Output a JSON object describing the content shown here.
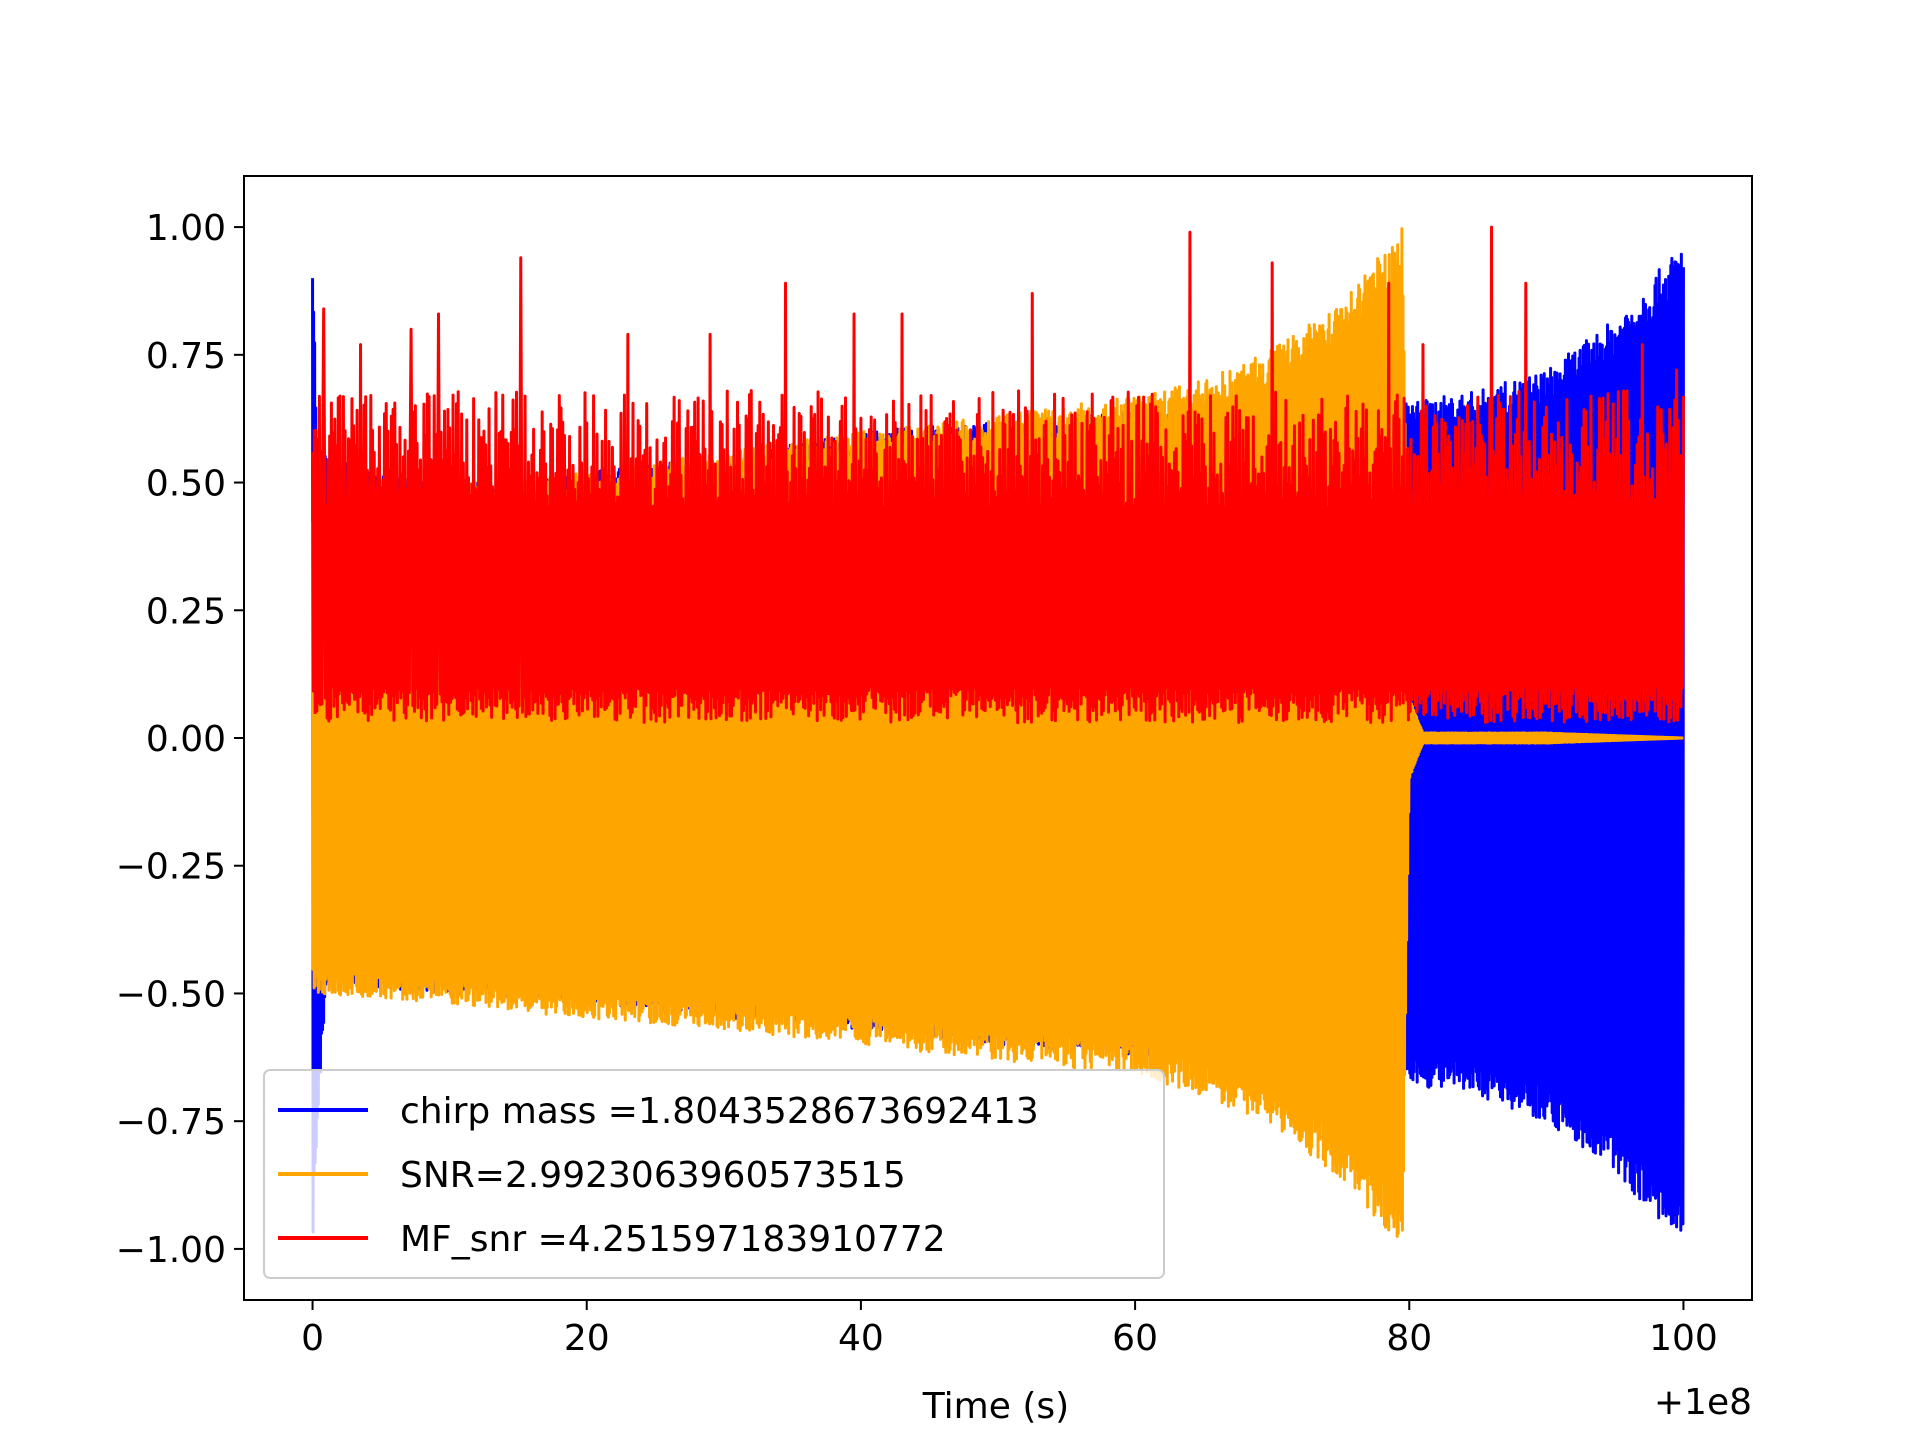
{
  "chart_data": {
    "type": "line",
    "title": "",
    "xlabel": "Time (s)",
    "ylabel": "",
    "x_offset_label": "+1e8",
    "xlim": [
      -5,
      105
    ],
    "ylim": [
      -1.1,
      1.1
    ],
    "x_ticks": [
      0,
      20,
      40,
      60,
      80,
      100
    ],
    "x_tick_labels": [
      "0",
      "20",
      "40",
      "60",
      "80",
      "100"
    ],
    "y_ticks": [
      1.0,
      0.75,
      0.5,
      0.25,
      0.0,
      -0.25,
      -0.5,
      -0.75,
      -1.0
    ],
    "y_tick_labels": [
      "1.00",
      "0.75",
      "0.50",
      "0.25",
      "0.00",
      "−0.25",
      "−0.50",
      "−0.75",
      "−1.00"
    ],
    "grid": false,
    "legend_position": "lower-left",
    "series": [
      {
        "name": "chirp mass =1.8043528673692413",
        "color": "#0000ff",
        "x_range": [
          0,
          100
        ],
        "envelope_x": [
          0,
          0.3,
          1,
          10,
          20,
          30,
          40,
          50,
          60,
          70,
          79.5,
          80.5,
          85,
          90,
          95,
          100
        ],
        "upper": [
          1.0,
          0.6,
          0.55,
          0.5,
          0.52,
          0.55,
          0.6,
          0.62,
          0.64,
          0.66,
          0.66,
          0.66,
          0.68,
          0.72,
          0.82,
          0.97
        ],
        "lower": [
          -1.0,
          -0.8,
          -0.48,
          -0.5,
          -0.52,
          -0.55,
          -0.57,
          -0.6,
          -0.62,
          -0.64,
          -0.65,
          -0.68,
          -0.7,
          -0.75,
          -0.85,
          -1.0
        ]
      },
      {
        "name": "SNR=2.9923063960573515",
        "color": "#ffa500",
        "x_range": [
          0,
          100
        ],
        "envelope_x": [
          0,
          10,
          20,
          30,
          40,
          50,
          60,
          65,
          70,
          75,
          79.5,
          80,
          81,
          85,
          90,
          100
        ],
        "upper": [
          0.45,
          0.5,
          0.52,
          0.56,
          0.6,
          0.63,
          0.67,
          0.7,
          0.76,
          0.85,
          1.0,
          0.08,
          0.01,
          0.01,
          0.01,
          0.0
        ],
        "lower": [
          -0.5,
          -0.52,
          -0.55,
          -0.57,
          -0.6,
          -0.63,
          -0.66,
          -0.7,
          -0.76,
          -0.86,
          -1.0,
          -0.08,
          -0.01,
          -0.01,
          -0.01,
          0.0
        ]
      },
      {
        "name": "MF_snr =4.251597183910772",
        "color": "#ff0000",
        "x_range": [
          0,
          100
        ],
        "baseline": [
          0.03,
          0.1
        ],
        "typical_high": [
          0.45,
          0.68
        ],
        "peaks": [
          {
            "x": 0.8,
            "y": 0.84
          },
          {
            "x": 3.5,
            "y": 0.77
          },
          {
            "x": 7.2,
            "y": 0.8
          },
          {
            "x": 9.2,
            "y": 0.83
          },
          {
            "x": 15.2,
            "y": 0.94
          },
          {
            "x": 23,
            "y": 0.79
          },
          {
            "x": 29,
            "y": 0.79
          },
          {
            "x": 34.5,
            "y": 0.89
          },
          {
            "x": 39.5,
            "y": 0.83
          },
          {
            "x": 43,
            "y": 0.83
          },
          {
            "x": 52.5,
            "y": 0.87
          },
          {
            "x": 64,
            "y": 0.99
          },
          {
            "x": 70,
            "y": 0.93
          },
          {
            "x": 78.5,
            "y": 0.89
          },
          {
            "x": 81,
            "y": 0.77
          },
          {
            "x": 86,
            "y": 1.0
          },
          {
            "x": 88.5,
            "y": 0.89
          },
          {
            "x": 97,
            "y": 0.77
          },
          {
            "x": 99.5,
            "y": 0.72
          }
        ]
      }
    ]
  }
}
